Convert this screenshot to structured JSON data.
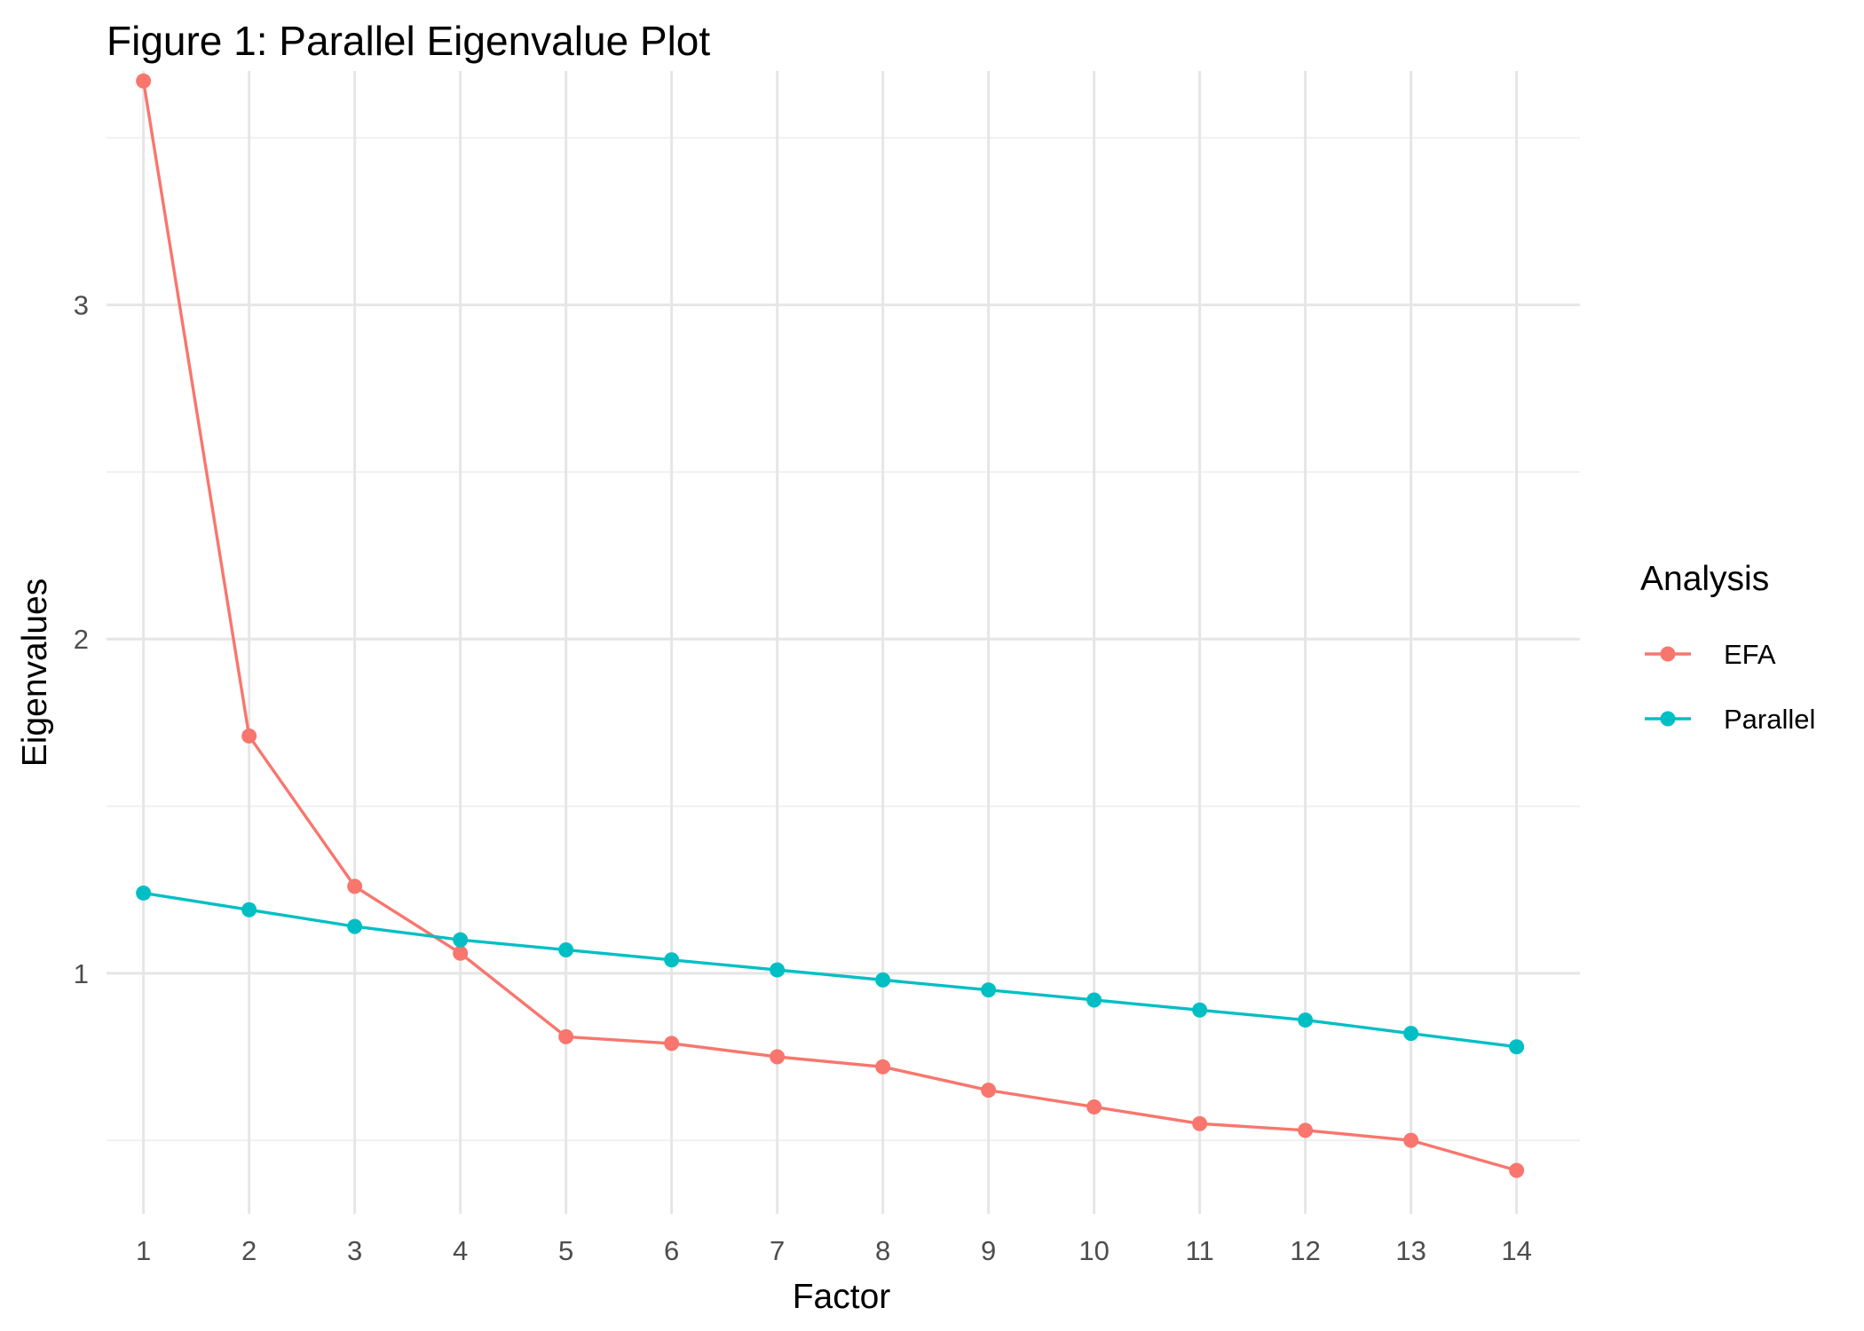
{
  "chart_data": {
    "type": "line",
    "title": "Figure 1: Parallel Eigenvalue Plot",
    "xlabel": "Factor",
    "ylabel": "Eigenvalues",
    "x": [
      1,
      2,
      3,
      4,
      5,
      6,
      7,
      8,
      9,
      10,
      11,
      12,
      13,
      14
    ],
    "xticks": [
      "1",
      "2",
      "3",
      "4",
      "5",
      "6",
      "7",
      "8",
      "9",
      "10",
      "11",
      "12",
      "13",
      "14"
    ],
    "yticks": [
      "1",
      "2",
      "3"
    ],
    "ylim": [
      0.28,
      3.7
    ],
    "xlim": [
      0.65,
      14.6
    ],
    "grid": true,
    "legend": {
      "title": "Analysis",
      "position": "right"
    },
    "series": [
      {
        "name": "EFA",
        "color": "#F8766D",
        "values": [
          3.67,
          1.71,
          1.26,
          1.06,
          0.81,
          0.79,
          0.75,
          0.72,
          0.65,
          0.6,
          0.55,
          0.53,
          0.5,
          0.41
        ]
      },
      {
        "name": "Parallel",
        "color": "#00BFC4",
        "values": [
          1.24,
          1.19,
          1.14,
          1.1,
          1.07,
          1.04,
          1.01,
          0.98,
          0.95,
          0.92,
          0.89,
          0.86,
          0.82,
          0.78
        ]
      }
    ]
  }
}
